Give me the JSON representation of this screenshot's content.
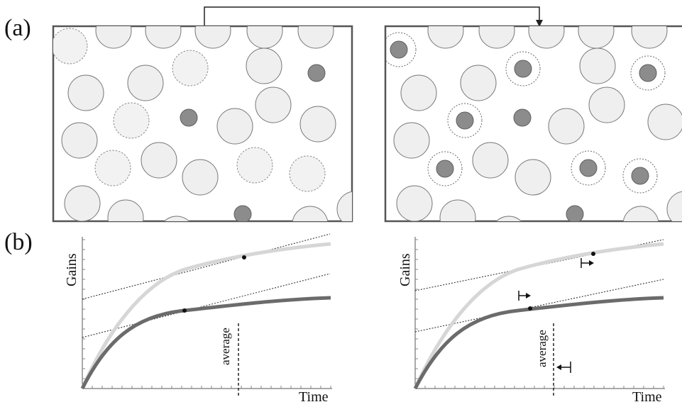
{
  "labels": {
    "panel_a": "(a)",
    "panel_b": "(b)"
  },
  "plots": {
    "ylabel": "Gains",
    "xlabel": "Time",
    "average_label": "average"
  },
  "colors": {
    "rich_patch_curve": "#d9d9d9",
    "poor_patch_curve": "#6e6e6e",
    "depleted_patch": "dashed outline",
    "dark_patch": "#8c8c8c"
  },
  "chart_data": [
    {
      "type": "line",
      "title": "",
      "xlabel": "Time",
      "ylabel": "Gains",
      "series": [
        {
          "values_note": "rich patch gain curve (light)",
          "x": [
            0,
            1,
            2,
            3,
            4,
            5,
            6,
            7,
            8,
            9,
            10
          ],
          "y": [
            0,
            2.3,
            3.9,
            5.1,
            5.9,
            6.5,
            6.9,
            7.2,
            7.4,
            7.6,
            7.7
          ]
        },
        {
          "values_note": "poor patch gain curve (dark)",
          "x": [
            0,
            1,
            2,
            3,
            4,
            5,
            6,
            7,
            8,
            9,
            10
          ],
          "y": [
            0,
            1.9,
            3.1,
            3.8,
            4.2,
            4.5,
            4.7,
            4.8,
            4.9,
            4.95,
            5.0
          ]
        }
      ],
      "marked_points_x": [
        4.2,
        6.4
      ],
      "average_x": 6.2
    },
    {
      "type": "line",
      "title": "",
      "xlabel": "Time",
      "ylabel": "Gains",
      "series": [
        {
          "values_note": "rich patch gain curve (light)",
          "x": [
            0,
            1,
            2,
            3,
            4,
            5,
            6,
            7,
            8,
            9,
            10
          ],
          "y": [
            0,
            2.3,
            3.9,
            5.1,
            5.9,
            6.5,
            6.9,
            7.2,
            7.4,
            7.6,
            7.7
          ]
        },
        {
          "values_note": "poor patch gain curve (dark)",
          "x": [
            0,
            1,
            2,
            3,
            4,
            5,
            6,
            7,
            8,
            9,
            10
          ],
          "y": [
            0,
            1.9,
            3.1,
            3.8,
            4.2,
            4.5,
            4.7,
            4.8,
            4.9,
            4.95,
            5.0
          ]
        }
      ],
      "marked_points_x": [
        4.6,
        7.1
      ],
      "average_x": 5.6
    }
  ]
}
